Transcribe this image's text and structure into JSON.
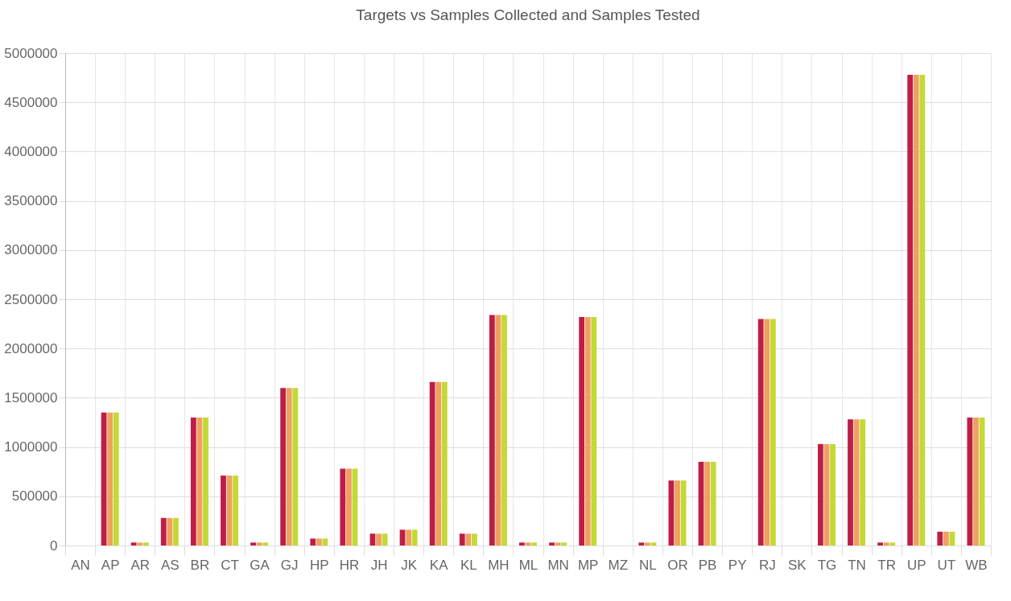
{
  "chart_data": {
    "type": "bar",
    "title": "Targets vs Samples Collected and Samples Tested",
    "categories": [
      "AN",
      "AP",
      "AR",
      "AS",
      "BR",
      "CT",
      "GA",
      "GJ",
      "HP",
      "HR",
      "JH",
      "JK",
      "KA",
      "KL",
      "MH",
      "ML",
      "MN",
      "MP",
      "MZ",
      "NL",
      "OR",
      "PB",
      "PY",
      "RJ",
      "SK",
      "TG",
      "TN",
      "TR",
      "UP",
      "UT",
      "WB"
    ],
    "series": [
      {
        "color": "#be1e45",
        "values": [
          0,
          1350000,
          30000,
          280000,
          1300000,
          710000,
          30000,
          1600000,
          70000,
          780000,
          120000,
          160000,
          1660000,
          120000,
          2340000,
          30000,
          30000,
          2320000,
          0,
          30000,
          660000,
          850000,
          0,
          2300000,
          0,
          1030000,
          1280000,
          30000,
          4780000,
          140000,
          1300000
        ]
      },
      {
        "color": "#f0a060",
        "values": [
          0,
          1350000,
          30000,
          280000,
          1300000,
          710000,
          30000,
          1600000,
          70000,
          780000,
          120000,
          160000,
          1660000,
          120000,
          2340000,
          30000,
          30000,
          2320000,
          0,
          30000,
          660000,
          850000,
          0,
          2300000,
          0,
          1030000,
          1280000,
          30000,
          4780000,
          140000,
          1300000
        ]
      },
      {
        "color": "#c3d934",
        "values": [
          0,
          1350000,
          30000,
          280000,
          1300000,
          710000,
          30000,
          1600000,
          70000,
          780000,
          120000,
          160000,
          1660000,
          120000,
          2340000,
          30000,
          30000,
          2320000,
          0,
          30000,
          660000,
          850000,
          0,
          2300000,
          0,
          1030000,
          1280000,
          30000,
          4780000,
          140000,
          1300000
        ]
      }
    ],
    "ylim": [
      0,
      5000000
    ],
    "yticks": [
      0,
      500000,
      1000000,
      1500000,
      2000000,
      2500000,
      3000000,
      3500000,
      4000000,
      4500000,
      5000000
    ],
    "grid": true,
    "legend": false
  }
}
